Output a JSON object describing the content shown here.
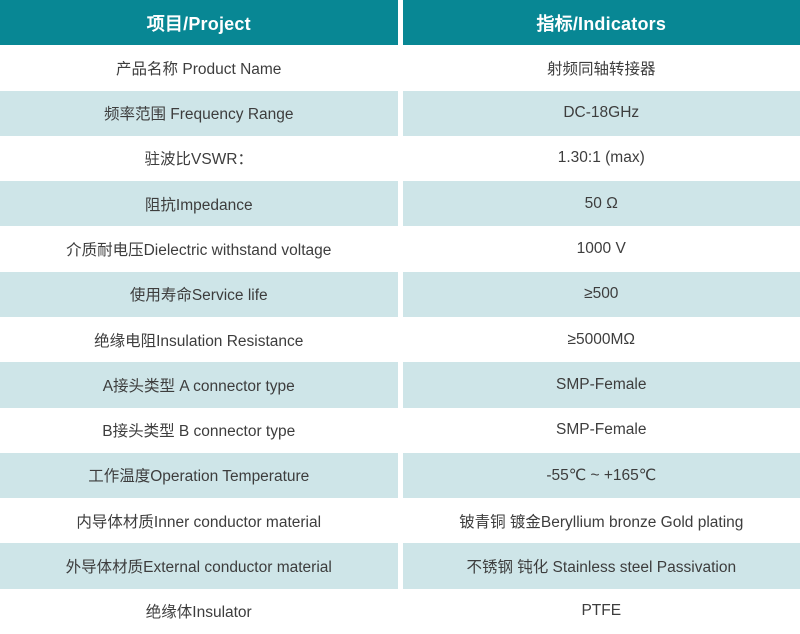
{
  "table": {
    "header": {
      "project": "项目/Project",
      "indicator": "指标/Indicators"
    },
    "rows": [
      {
        "project": "产品名称 Product Name",
        "indicator": "射频同轴转接器"
      },
      {
        "project": "频率范围 Frequency Range",
        "indicator": "DC-18GHz"
      },
      {
        "project": "驻波比VSWR：",
        "indicator": "1.30:1 (max)"
      },
      {
        "project": "阻抗Impedance",
        "indicator": "50 Ω"
      },
      {
        "project": "介质耐电压Dielectric withstand voltage",
        "indicator": "1000 V"
      },
      {
        "project": "使用寿命Service life",
        "indicator": "≥500"
      },
      {
        "project": "绝缘电阻Insulation Resistance",
        "indicator": "≥5000MΩ"
      },
      {
        "project": "A接头类型 A connector type",
        "indicator": "SMP-Female"
      },
      {
        "project": "B接头类型 B connector type",
        "indicator": "SMP-Female"
      },
      {
        "project": "工作温度Operation Temperature",
        "indicator": "-55℃ ~ +165℃"
      },
      {
        "project": "内导体材质Inner conductor material",
        "indicator": "铍青铜 镀金Beryllium bronze Gold plating"
      },
      {
        "project": "外导体材质External conductor material",
        "indicator": "不锈钢 钝化 Stainless steel Passivation"
      },
      {
        "project": "绝缘体Insulator",
        "indicator": "PTFE"
      }
    ],
    "colors": {
      "header_bg": "#088794",
      "header_text": "#ffffff",
      "row_white_bg": "#ffffff",
      "row_alt_bg": "#cee5e8",
      "body_text": "#3d3d3d",
      "divider": "#ffffff"
    }
  }
}
